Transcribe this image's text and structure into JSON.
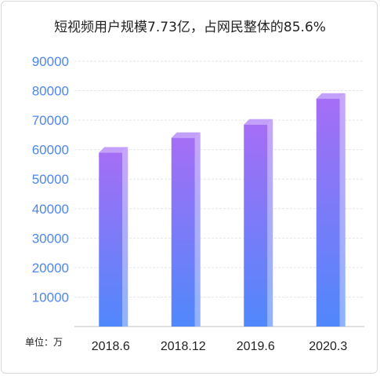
{
  "chart_data": {
    "type": "bar",
    "title": "短视频用户规模7.73亿，占网民整体的85.6%",
    "unit_label": "单位：万",
    "categories": [
      "2018.6",
      "2018.12",
      "2019.6",
      "2020.3"
    ],
    "values": [
      59000,
      64000,
      68500,
      77300
    ],
    "yticks": [
      "10000",
      "20000",
      "30000",
      "40000",
      "50000",
      "60000",
      "70000",
      "80000",
      "90000"
    ],
    "ylim": [
      0,
      90000
    ],
    "grid": true,
    "colors": {
      "bar_top": "#a56ef5",
      "bar_bottom": "#5088fb",
      "tick_text": "#4f86ec",
      "grid": "#e6e6e6"
    }
  }
}
